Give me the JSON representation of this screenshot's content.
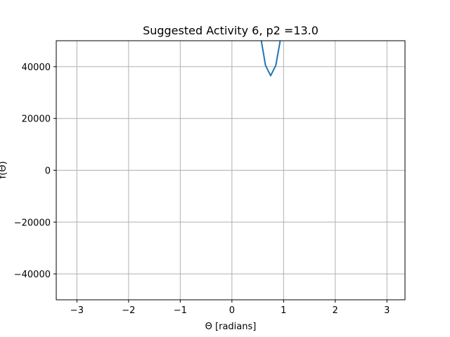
{
  "chart_data": {
    "type": "line",
    "title": "Suggested Activity 6, p2 =13.0",
    "xlabel": "Θ [radians]",
    "ylabel": "f(Θ)",
    "xlim": [
      -3.4,
      3.35
    ],
    "ylim": [
      -50000,
      50000
    ],
    "grid": true,
    "x_ticks": [
      -3,
      -2,
      -1,
      0,
      1,
      2,
      3
    ],
    "x_tick_labels": [
      "−3",
      "−2",
      "−1",
      "0",
      "1",
      "2",
      "3"
    ],
    "y_ticks": [
      -40000,
      -20000,
      0,
      20000,
      40000
    ],
    "y_tick_labels": [
      "−40000",
      "−20000",
      "0",
      "20000",
      "40000"
    ],
    "series": [
      {
        "color": "#1f77b4",
        "x": [
          0.5,
          0.56,
          0.65,
          0.75,
          0.85,
          0.93,
          1.0
        ],
        "y": [
          61000,
          51000,
          40500,
          36500,
          40500,
          49500,
          58000
        ]
      }
    ]
  }
}
